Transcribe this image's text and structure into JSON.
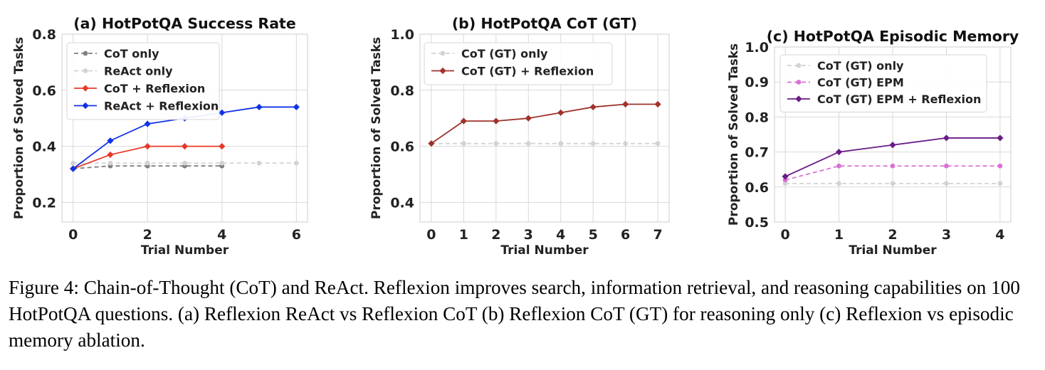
{
  "caption": "Figure 4: Chain-of-Thought (CoT) and ReAct. Reflexion improves search, information retrieval, and reasoning capabilities on 100 HotPotQA questions. (a) Reflexion ReAct vs Reflexion CoT (b) Reflexion CoT (GT) for reasoning only (c) Reflexion vs episodic memory ablation.",
  "chart_data": [
    {
      "type": "line",
      "title": "(a) HotPotQA Success Rate",
      "xlabel": "Trial Number",
      "ylabel": "Proportion of Solved Tasks",
      "xlim": [
        -0.3,
        6.3
      ],
      "ylim": [
        0.13,
        0.8
      ],
      "xticks": [
        0,
        2,
        4,
        6
      ],
      "yticks": [
        0.2,
        0.4,
        0.6,
        0.8
      ],
      "grid": true,
      "legend_position": "top-left",
      "series": [
        {
          "name": "CoT only",
          "x": [
            0,
            1,
            2,
            3,
            4
          ],
          "values": [
            0.32,
            0.33,
            0.33,
            0.33,
            0.33
          ],
          "color": "#7f7f7f",
          "dashed": true,
          "marker": "circle"
        },
        {
          "name": "ReAct only",
          "x": [
            0,
            1,
            2,
            3,
            4,
            5,
            6
          ],
          "values": [
            0.34,
            0.34,
            0.34,
            0.34,
            0.34,
            0.34,
            0.34
          ],
          "color": "#d3d3d3",
          "dashed": true,
          "marker": "circle"
        },
        {
          "name": "CoT + Reflexion",
          "x": [
            0,
            1,
            2,
            3,
            4
          ],
          "values": [
            0.32,
            0.37,
            0.4,
            0.4,
            0.4
          ],
          "color": "#e8392a",
          "dashed": false,
          "marker": "diamond"
        },
        {
          "name": "ReAct + Reflexion",
          "x": [
            0,
            1,
            2,
            3,
            4,
            5,
            6
          ],
          "values": [
            0.32,
            0.42,
            0.48,
            0.5,
            0.52,
            0.54,
            0.54
          ],
          "color": "#1032e6",
          "dashed": false,
          "marker": "diamond"
        }
      ]
    },
    {
      "type": "line",
      "title": "(b) HotPotQA CoT (GT)",
      "xlabel": "Trial Number",
      "ylabel": "Proportion of Solved Tasks",
      "xlim": [
        -0.35,
        7.35
      ],
      "ylim": [
        0.33,
        1.0
      ],
      "xticks": [
        0,
        1,
        2,
        3,
        4,
        5,
        6,
        7
      ],
      "yticks": [
        0.4,
        0.6,
        0.8,
        1.0
      ],
      "grid": true,
      "legend_position": "top-left",
      "series": [
        {
          "name": "CoT (GT) only",
          "x": [
            0,
            1,
            2,
            3,
            4,
            5,
            6,
            7
          ],
          "values": [
            0.61,
            0.61,
            0.61,
            0.61,
            0.61,
            0.61,
            0.61,
            0.61
          ],
          "color": "#d3d3d3",
          "dashed": true,
          "marker": "circle"
        },
        {
          "name": "CoT (GT) + Reflexion",
          "x": [
            0,
            1,
            2,
            3,
            4,
            5,
            6,
            7
          ],
          "values": [
            0.61,
            0.69,
            0.69,
            0.7,
            0.72,
            0.74,
            0.75,
            0.75
          ],
          "color": "#a0322b",
          "dashed": false,
          "marker": "diamond"
        }
      ]
    },
    {
      "type": "line",
      "title": "(c) HotPotQA Episodic Memory",
      "xlabel": "Trial Number",
      "ylabel": "Proportion of Solved Tasks",
      "xlim": [
        -0.2,
        4.2
      ],
      "ylim": [
        0.5,
        1.0
      ],
      "xticks": [
        0,
        1,
        2,
        3,
        4
      ],
      "yticks": [
        0.5,
        0.6,
        0.7,
        0.8,
        0.9,
        1.0
      ],
      "grid": true,
      "legend_position": "top-left",
      "series": [
        {
          "name": "CoT (GT) only",
          "x": [
            0,
            1,
            2,
            3,
            4
          ],
          "values": [
            0.61,
            0.61,
            0.61,
            0.61,
            0.61
          ],
          "color": "#d3d3d3",
          "dashed": true,
          "marker": "circle"
        },
        {
          "name": "CoT (GT) EPM",
          "x": [
            0,
            1,
            2,
            3,
            4
          ],
          "values": [
            0.62,
            0.66,
            0.66,
            0.66,
            0.66
          ],
          "color": "#da70d6",
          "dashed": true,
          "marker": "circle"
        },
        {
          "name": "CoT (GT) EPM + Reflexion",
          "x": [
            0,
            1,
            2,
            3,
            4
          ],
          "values": [
            0.63,
            0.7,
            0.72,
            0.74,
            0.74
          ],
          "color": "#6a1b86",
          "dashed": false,
          "marker": "diamond"
        }
      ]
    }
  ]
}
